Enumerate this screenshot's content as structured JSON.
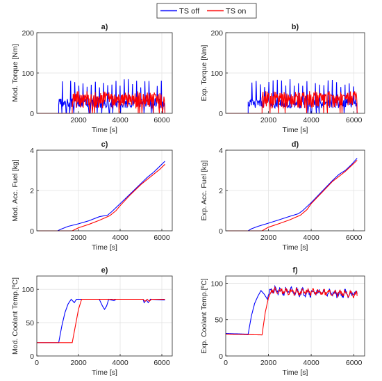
{
  "legend": {
    "items": [
      {
        "label": "TS off",
        "color": "#0000ff"
      },
      {
        "label": "TS on",
        "color": "#ff0000"
      }
    ]
  },
  "chart_data": [
    {
      "type": "line",
      "title": "a)",
      "xlabel": "Time [s]",
      "ylabel": "Mod. Torque [Nm]",
      "xlim": [
        0,
        6500
      ],
      "ylim": [
        0,
        200
      ],
      "xticks": [
        2000,
        4000,
        6000
      ],
      "yticks": [
        0,
        100,
        200
      ],
      "grid": true,
      "series": [
        {
          "name": "TS off",
          "color": "#0000ff",
          "kind": "torque",
          "start": 1050,
          "end": 6150,
          "base": 25,
          "noise": 12,
          "spike": 85,
          "spikeEvery": 9,
          "seed": 3
        },
        {
          "name": "TS on",
          "color": "#ff0000",
          "kind": "torque",
          "start": 1700,
          "end": 6150,
          "base": 30,
          "noise": 18,
          "spike": 55,
          "spikeEvery": 3,
          "seed": 7
        }
      ]
    },
    {
      "type": "line",
      "title": "b)",
      "xlabel": "Time [s]",
      "ylabel": "Exp. Torque [Nm]",
      "xlim": [
        0,
        6500
      ],
      "ylim": [
        0,
        200
      ],
      "xticks": [
        2000,
        4000,
        6000
      ],
      "yticks": [
        0,
        100,
        200
      ],
      "grid": true,
      "series": [
        {
          "name": "TS off",
          "color": "#0000ff",
          "kind": "torque",
          "start": 1050,
          "end": 6150,
          "base": 25,
          "noise": 12,
          "spike": 85,
          "spikeEvery": 9,
          "seed": 11
        },
        {
          "name": "TS on",
          "color": "#ff0000",
          "kind": "torque",
          "start": 1700,
          "end": 6150,
          "base": 30,
          "noise": 18,
          "spike": 55,
          "spikeEvery": 3,
          "seed": 13
        }
      ]
    },
    {
      "type": "line",
      "title": "c)",
      "xlabel": "Time [s]",
      "ylabel": "Mod. Acc. Fuel [kg]",
      "xlim": [
        0,
        6500
      ],
      "ylim": [
        0,
        4
      ],
      "xticks": [
        2000,
        4000,
        6000
      ],
      "yticks": [
        0,
        2,
        4
      ],
      "grid": true,
      "series": [
        {
          "name": "TS off",
          "color": "#0000ff",
          "kind": "points",
          "points": [
            [
              0,
              0
            ],
            [
              1000,
              0
            ],
            [
              1150,
              0.08
            ],
            [
              1500,
              0.22
            ],
            [
              2000,
              0.35
            ],
            [
              2500,
              0.5
            ],
            [
              3000,
              0.7
            ],
            [
              3400,
              0.78
            ],
            [
              3600,
              0.95
            ],
            [
              4000,
              1.35
            ],
            [
              4500,
              1.85
            ],
            [
              5000,
              2.35
            ],
            [
              5300,
              2.65
            ],
            [
              5600,
              2.9
            ],
            [
              5900,
              3.2
            ],
            [
              6150,
              3.45
            ]
          ]
        },
        {
          "name": "TS on",
          "color": "#ff0000",
          "kind": "points",
          "points": [
            [
              0,
              0
            ],
            [
              1700,
              0
            ],
            [
              2000,
              0.15
            ],
            [
              2500,
              0.32
            ],
            [
              3000,
              0.52
            ],
            [
              3500,
              0.75
            ],
            [
              3800,
              1.0
            ],
            [
              4000,
              1.25
            ],
            [
              4500,
              1.8
            ],
            [
              5000,
              2.3
            ],
            [
              5300,
              2.55
            ],
            [
              5600,
              2.8
            ],
            [
              5900,
              3.05
            ],
            [
              6150,
              3.3
            ]
          ]
        }
      ]
    },
    {
      "type": "line",
      "title": "d)",
      "xlabel": "Time [s]",
      "ylabel": "Exp. Acc. Fuel [kg]",
      "xlim": [
        0,
        6500
      ],
      "ylim": [
        0,
        4
      ],
      "xticks": [
        2000,
        4000,
        6000
      ],
      "yticks": [
        0,
        2,
        4
      ],
      "grid": true,
      "series": [
        {
          "name": "TS off",
          "color": "#0000ff",
          "kind": "points",
          "points": [
            [
              0,
              0
            ],
            [
              1050,
              0
            ],
            [
              1200,
              0.1
            ],
            [
              1500,
              0.22
            ],
            [
              2000,
              0.38
            ],
            [
              2500,
              0.55
            ],
            [
              3000,
              0.72
            ],
            [
              3400,
              0.85
            ],
            [
              3600,
              1.0
            ],
            [
              4000,
              1.4
            ],
            [
              4500,
              1.95
            ],
            [
              5000,
              2.5
            ],
            [
              5300,
              2.8
            ],
            [
              5600,
              3.0
            ],
            [
              5900,
              3.3
            ],
            [
              6150,
              3.6
            ]
          ]
        },
        {
          "name": "TS on",
          "color": "#ff0000",
          "kind": "points",
          "points": [
            [
              0,
              0
            ],
            [
              1700,
              0
            ],
            [
              2000,
              0.18
            ],
            [
              2500,
              0.36
            ],
            [
              3000,
              0.55
            ],
            [
              3500,
              0.78
            ],
            [
              3800,
              1.05
            ],
            [
              4000,
              1.35
            ],
            [
              4500,
              1.9
            ],
            [
              5000,
              2.45
            ],
            [
              5300,
              2.7
            ],
            [
              5600,
              2.95
            ],
            [
              5900,
              3.25
            ],
            [
              6150,
              3.5
            ]
          ]
        }
      ]
    },
    {
      "type": "line",
      "title": "e)",
      "xlabel": "Time [s]",
      "ylabel": "Mod. Coolant Temp.[ºC]",
      "xlim": [
        0,
        6500
      ],
      "ylim": [
        0,
        120
      ],
      "xticks": [
        0,
        2000,
        4000,
        6000
      ],
      "yticks": [
        0,
        50,
        100
      ],
      "grid": true,
      "series": [
        {
          "name": "TS off",
          "color": "#0000ff",
          "kind": "points",
          "points": [
            [
              0,
              20
            ],
            [
              1050,
              20
            ],
            [
              1200,
              45
            ],
            [
              1350,
              65
            ],
            [
              1500,
              78
            ],
            [
              1650,
              85
            ],
            [
              1800,
              80
            ],
            [
              1900,
              85
            ],
            [
              3000,
              85
            ],
            [
              3150,
              75
            ],
            [
              3250,
              70
            ],
            [
              3350,
              75
            ],
            [
              3450,
              85
            ],
            [
              3700,
              83
            ],
            [
              3800,
              85
            ],
            [
              5100,
              85
            ],
            [
              5150,
              80
            ],
            [
              5250,
              84
            ],
            [
              5350,
              80
            ],
            [
              5450,
              85
            ],
            [
              6150,
              84
            ]
          ]
        },
        {
          "name": "TS on",
          "color": "#ff0000",
          "kind": "points",
          "points": [
            [
              0,
              20
            ],
            [
              1700,
              20
            ],
            [
              1850,
              45
            ],
            [
              2000,
              70
            ],
            [
              2150,
              85
            ],
            [
              3000,
              85
            ],
            [
              5100,
              85
            ],
            [
              5200,
              82
            ],
            [
              5300,
              85
            ],
            [
              5400,
              82
            ],
            [
              5500,
              85
            ],
            [
              6150,
              85
            ]
          ]
        }
      ]
    },
    {
      "type": "line",
      "title": "f)",
      "xlabel": "Time [s]",
      "ylabel": "Exp. Coolant Temp.[ºC]",
      "xlim": [
        0,
        6500
      ],
      "ylim": [
        0,
        110
      ],
      "xticks": [
        0,
        2000,
        4000,
        6000
      ],
      "yticks": [
        0,
        50,
        100
      ],
      "grid": true,
      "series": [
        {
          "name": "TS off",
          "color": "#0000ff",
          "kind": "temp",
          "points": [
            [
              0,
              31
            ],
            [
              1050,
              30
            ],
            [
              1200,
              55
            ],
            [
              1350,
              72
            ],
            [
              1500,
              82
            ],
            [
              1650,
              90
            ],
            [
              1800,
              85
            ],
            [
              1950,
              78
            ],
            [
              2050,
              90
            ],
            [
              6150,
              85
            ]
          ],
          "noiseFrom": 2000,
          "noiseAmp": 7,
          "seed": 21
        },
        {
          "name": "TS on",
          "color": "#ff0000",
          "kind": "temp",
          "points": [
            [
              0,
              30
            ],
            [
              1700,
              29
            ],
            [
              1850,
              60
            ],
            [
              2000,
              80
            ],
            [
              2150,
              90
            ],
            [
              6150,
              85
            ]
          ],
          "noiseFrom": 2100,
          "noiseAmp": 6,
          "seed": 29
        }
      ]
    }
  ]
}
